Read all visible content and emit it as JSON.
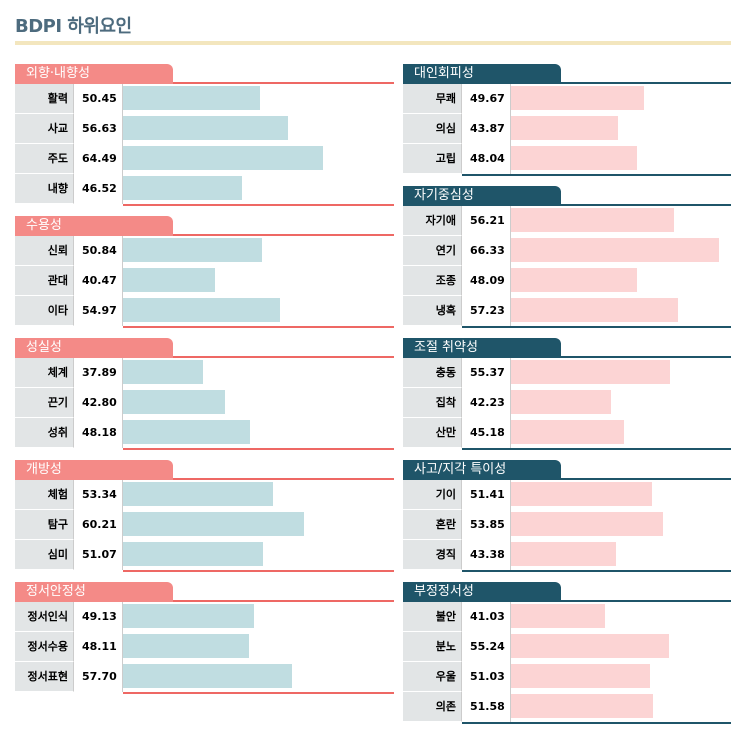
{
  "title": "BDPI 하위요인",
  "colors": {
    "left_tab": "#f48a87",
    "left_line": "#ee6864",
    "left_bar": "#c0dde1",
    "right_tab": "#1f5569",
    "right_bar": "#fcd4d4",
    "title_rule": "#f3e6be"
  },
  "chart_data": {
    "type": "bar",
    "orientation": "horizontal",
    "xlim": [
      20,
      80
    ],
    "columns": [
      [
        {
          "name": "외향·내향성",
          "items": [
            {
              "label": "활력",
              "value": 50.45
            },
            {
              "label": "사교",
              "value": 56.63
            },
            {
              "label": "주도",
              "value": 64.49
            },
            {
              "label": "내향",
              "value": 46.52
            }
          ]
        },
        {
          "name": "수용성",
          "items": [
            {
              "label": "신뢰",
              "value": 50.84
            },
            {
              "label": "관대",
              "value": 40.47
            },
            {
              "label": "이타",
              "value": 54.97
            }
          ]
        },
        {
          "name": "성실성",
          "items": [
            {
              "label": "체계",
              "value": 37.89
            },
            {
              "label": "끈기",
              "value": 42.8
            },
            {
              "label": "성취",
              "value": 48.18
            }
          ]
        },
        {
          "name": "개방성",
          "items": [
            {
              "label": "체험",
              "value": 53.34
            },
            {
              "label": "탐구",
              "value": 60.21
            },
            {
              "label": "심미",
              "value": 51.07
            }
          ]
        },
        {
          "name": "정서안정성",
          "items": [
            {
              "label": "정서인식",
              "value": 49.13
            },
            {
              "label": "정서수용",
              "value": 48.11
            },
            {
              "label": "정서표현",
              "value": 57.7
            }
          ]
        }
      ],
      [
        {
          "name": "대인회피성",
          "items": [
            {
              "label": "무쾌",
              "value": 49.67
            },
            {
              "label": "의심",
              "value": 43.87
            },
            {
              "label": "고립",
              "value": 48.04
            }
          ]
        },
        {
          "name": "자기중심성",
          "items": [
            {
              "label": "자기애",
              "value": 56.21
            },
            {
              "label": "연기",
              "value": 66.33
            },
            {
              "label": "조종",
              "value": 48.09
            },
            {
              "label": "냉혹",
              "value": 57.23
            }
          ]
        },
        {
          "name": "조절 취약성",
          "items": [
            {
              "label": "충동",
              "value": 55.37
            },
            {
              "label": "집착",
              "value": 42.23
            },
            {
              "label": "산만",
              "value": 45.18
            }
          ]
        },
        {
          "name": "사고/지각 특이성",
          "items": [
            {
              "label": "기이",
              "value": 51.41
            },
            {
              "label": "혼란",
              "value": 53.85
            },
            {
              "label": "경직",
              "value": 43.38
            }
          ]
        },
        {
          "name": "부정정서성",
          "items": [
            {
              "label": "불안",
              "value": 41.03
            },
            {
              "label": "분노",
              "value": 55.24
            },
            {
              "label": "우울",
              "value": 51.03
            },
            {
              "label": "의존",
              "value": 51.58
            }
          ]
        }
      ]
    ]
  }
}
